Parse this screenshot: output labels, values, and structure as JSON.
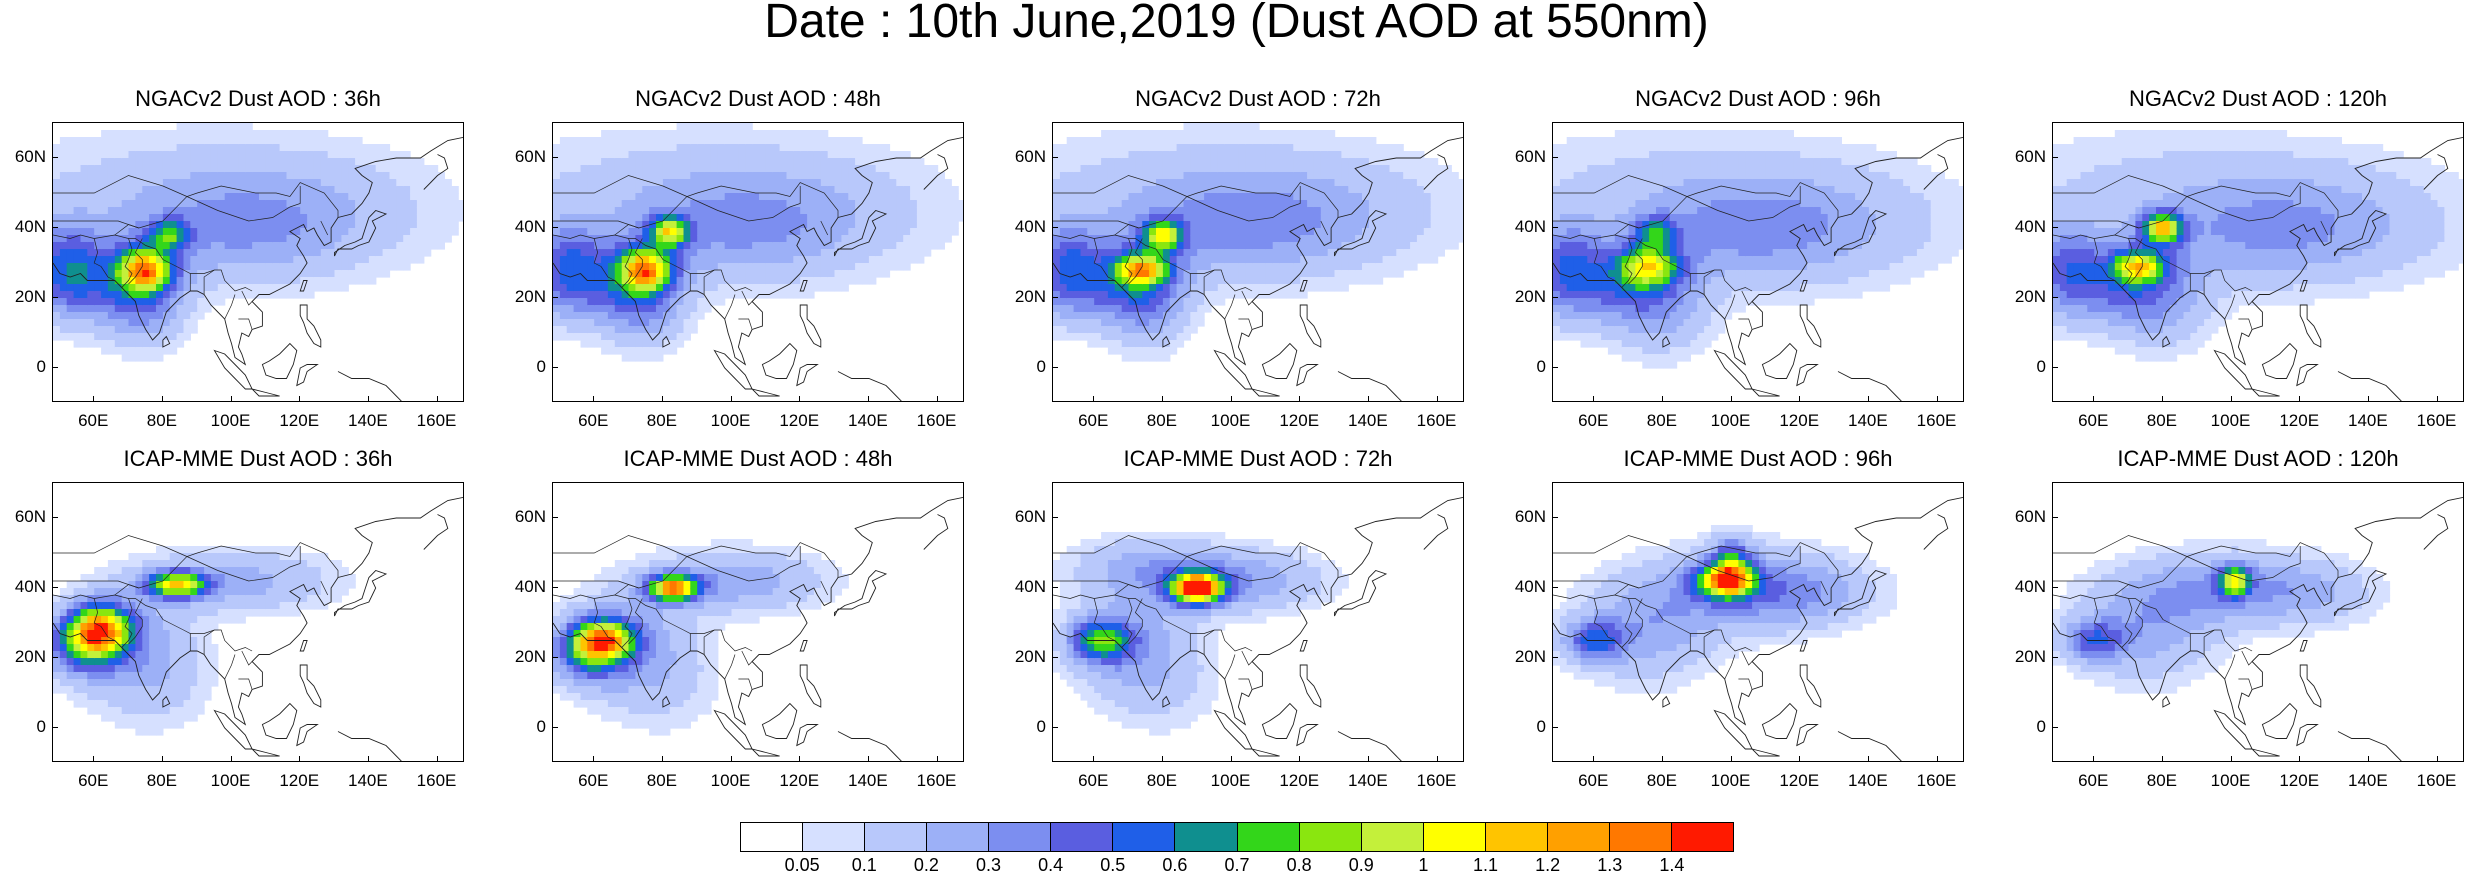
{
  "title": "Date : 10th June,2019 (Dust AOD at 550nm)",
  "panels": [
    {
      "title": "NGACv2 Dust AOD : 36h",
      "model": "NGACv2",
      "lead": "36h"
    },
    {
      "title": "NGACv2 Dust AOD : 48h",
      "model": "NGACv2",
      "lead": "48h"
    },
    {
      "title": "NGACv2 Dust AOD : 72h",
      "model": "NGACv2",
      "lead": "72h"
    },
    {
      "title": "NGACv2 Dust AOD : 96h",
      "model": "NGACv2",
      "lead": "96h"
    },
    {
      "title": "NGACv2 Dust AOD : 120h",
      "model": "NGACv2",
      "lead": "120h"
    },
    {
      "title": "ICAP-MME Dust AOD : 36h",
      "model": "ICAP-MME",
      "lead": "36h"
    },
    {
      "title": "ICAP-MME Dust AOD : 48h",
      "model": "ICAP-MME",
      "lead": "48h"
    },
    {
      "title": "ICAP-MME Dust AOD : 72h",
      "model": "ICAP-MME",
      "lead": "72h"
    },
    {
      "title": "ICAP-MME Dust AOD : 96h",
      "model": "ICAP-MME",
      "lead": "96h"
    },
    {
      "title": "ICAP-MME Dust AOD : 120h",
      "model": "ICAP-MME",
      "lead": "120h"
    }
  ],
  "axes": {
    "lat_labels": [
      "60N",
      "40N",
      "20N",
      "0"
    ],
    "lon_labels": [
      "60E",
      "80E",
      "100E",
      "120E",
      "140E",
      "160E"
    ]
  },
  "colorbar": {
    "labels": [
      "0.05",
      "0.1",
      "0.2",
      "0.3",
      "0.4",
      "0.5",
      "0.6",
      "0.7",
      "0.8",
      "0.9",
      "1",
      "1.1",
      "1.2",
      "1.3",
      "1.4"
    ],
    "colors": [
      "#ffffff",
      "#d6e0ff",
      "#b8c8fb",
      "#9cb0f7",
      "#7c8ef0",
      "#5a5ee0",
      "#1f5fe8",
      "#0f8f8f",
      "#33d61a",
      "#8ae60f",
      "#c4f03a",
      "#ffff00",
      "#ffc400",
      "#ffa000",
      "#ff7800",
      "#ff1a00"
    ]
  }
}
